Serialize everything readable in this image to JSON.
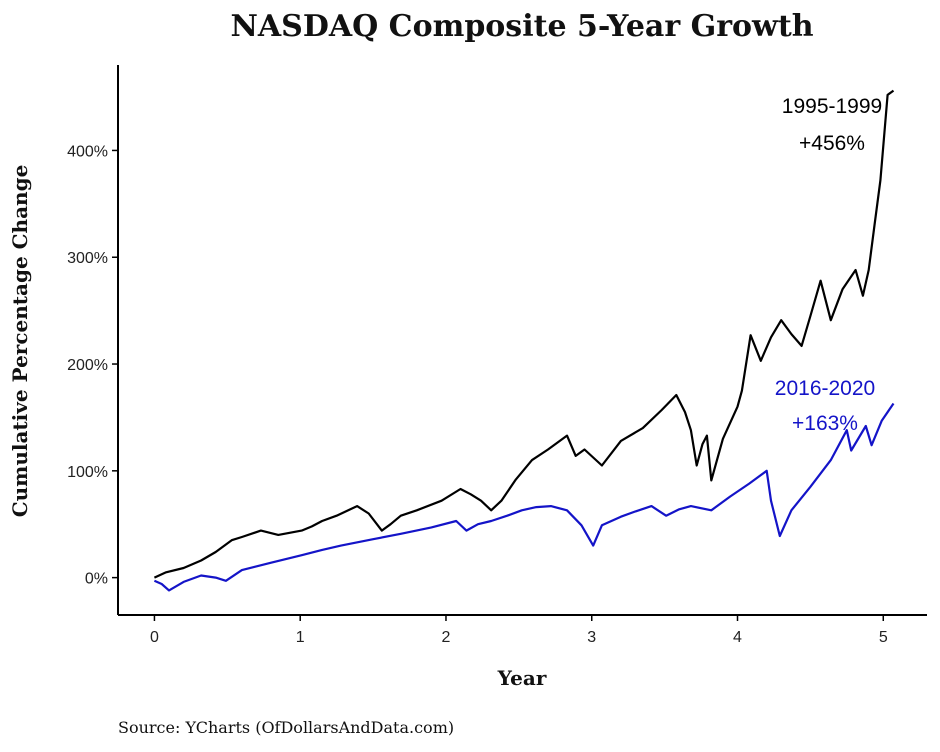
{
  "chart_data": {
    "type": "line",
    "title": "NASDAQ Composite 5-Year Growth",
    "xlabel": "Year",
    "ylabel": "Cumulative Percentage Change",
    "xlim": [
      -0.25,
      5.3
    ],
    "ylim": [
      -35,
      480
    ],
    "x_ticks": [
      0,
      1,
      2,
      3,
      4,
      5
    ],
    "x_tick_labels": [
      "0",
      "1",
      "2",
      "3",
      "4",
      "5"
    ],
    "y_ticks": [
      0,
      100,
      200,
      300,
      400
    ],
    "y_tick_labels": [
      "0%",
      "100%",
      "200%",
      "300%",
      "400%"
    ],
    "grid": false,
    "legend": "none",
    "source": "Source:  YCharts (OfDollarsAndData.com)",
    "series": [
      {
        "name": "1995-1999",
        "color": "#000000",
        "annotation": {
          "label": "1995-1999",
          "value_label": "+456%",
          "final_value": 456
        },
        "points": [
          [
            0,
            0
          ],
          [
            0.08,
            5
          ],
          [
            0.2,
            9
          ],
          [
            0.32,
            16
          ],
          [
            0.42,
            24
          ],
          [
            0.53,
            35
          ],
          [
            0.6,
            38
          ],
          [
            0.73,
            44
          ],
          [
            0.85,
            40
          ],
          [
            1.01,
            44
          ],
          [
            1.08,
            48
          ],
          [
            1.15,
            53
          ],
          [
            1.25,
            58
          ],
          [
            1.39,
            67
          ],
          [
            1.47,
            60
          ],
          [
            1.56,
            44
          ],
          [
            1.62,
            50
          ],
          [
            1.69,
            58
          ],
          [
            1.8,
            63
          ],
          [
            1.97,
            72
          ],
          [
            2.1,
            83
          ],
          [
            2.17,
            78
          ],
          [
            2.24,
            72
          ],
          [
            2.31,
            63
          ],
          [
            2.38,
            72
          ],
          [
            2.48,
            92
          ],
          [
            2.59,
            110
          ],
          [
            2.7,
            120
          ],
          [
            2.83,
            133
          ],
          [
            2.89,
            114
          ],
          [
            2.95,
            120
          ],
          [
            3.07,
            105
          ],
          [
            3.2,
            128
          ],
          [
            3.35,
            140
          ],
          [
            3.48,
            157
          ],
          [
            3.58,
            171
          ],
          [
            3.64,
            155
          ],
          [
            3.68,
            138
          ],
          [
            3.72,
            105
          ],
          [
            3.76,
            125
          ],
          [
            3.79,
            133
          ],
          [
            3.82,
            91
          ],
          [
            3.9,
            130
          ],
          [
            4.0,
            160
          ],
          [
            4.03,
            175
          ],
          [
            4.09,
            227
          ],
          [
            4.16,
            203
          ],
          [
            4.23,
            225
          ],
          [
            4.3,
            241
          ],
          [
            4.37,
            228
          ],
          [
            4.44,
            217
          ],
          [
            4.5,
            245
          ],
          [
            4.57,
            278
          ],
          [
            4.64,
            241
          ],
          [
            4.72,
            270
          ],
          [
            4.81,
            288
          ],
          [
            4.86,
            264
          ],
          [
            4.9,
            288
          ],
          [
            4.94,
            330
          ],
          [
            4.98,
            372
          ],
          [
            5.03,
            452
          ],
          [
            5.07,
            456
          ]
        ]
      },
      {
        "name": "2016-2020",
        "color": "#1414c8",
        "annotation": {
          "label": "2016-2020",
          "value_label": "+163%",
          "final_value": 163
        },
        "points": [
          [
            0,
            -3
          ],
          [
            0.05,
            -6
          ],
          [
            0.1,
            -12
          ],
          [
            0.2,
            -4
          ],
          [
            0.32,
            2
          ],
          [
            0.42,
            0
          ],
          [
            0.49,
            -3
          ],
          [
            0.6,
            7
          ],
          [
            0.8,
            14
          ],
          [
            1.01,
            21
          ],
          [
            1.15,
            26
          ],
          [
            1.28,
            30
          ],
          [
            1.5,
            36
          ],
          [
            1.69,
            41
          ],
          [
            1.9,
            47
          ],
          [
            2.07,
            53
          ],
          [
            2.14,
            44
          ],
          [
            2.22,
            50
          ],
          [
            2.31,
            53
          ],
          [
            2.42,
            58
          ],
          [
            2.52,
            63
          ],
          [
            2.62,
            66
          ],
          [
            2.72,
            67
          ],
          [
            2.83,
            63
          ],
          [
            2.93,
            49
          ],
          [
            3.01,
            30
          ],
          [
            3.07,
            49
          ],
          [
            3.2,
            57
          ],
          [
            3.3,
            62
          ],
          [
            3.41,
            67
          ],
          [
            3.51,
            58
          ],
          [
            3.6,
            64
          ],
          [
            3.68,
            67
          ],
          [
            3.82,
            63
          ],
          [
            3.95,
            76
          ],
          [
            4.08,
            88
          ],
          [
            4.2,
            100
          ],
          [
            4.23,
            72
          ],
          [
            4.29,
            39
          ],
          [
            4.37,
            63
          ],
          [
            4.5,
            85
          ],
          [
            4.64,
            110
          ],
          [
            4.75,
            138
          ],
          [
            4.78,
            119
          ],
          [
            4.88,
            142
          ],
          [
            4.92,
            124
          ],
          [
            4.99,
            147
          ],
          [
            5.07,
            163
          ]
        ]
      }
    ]
  }
}
